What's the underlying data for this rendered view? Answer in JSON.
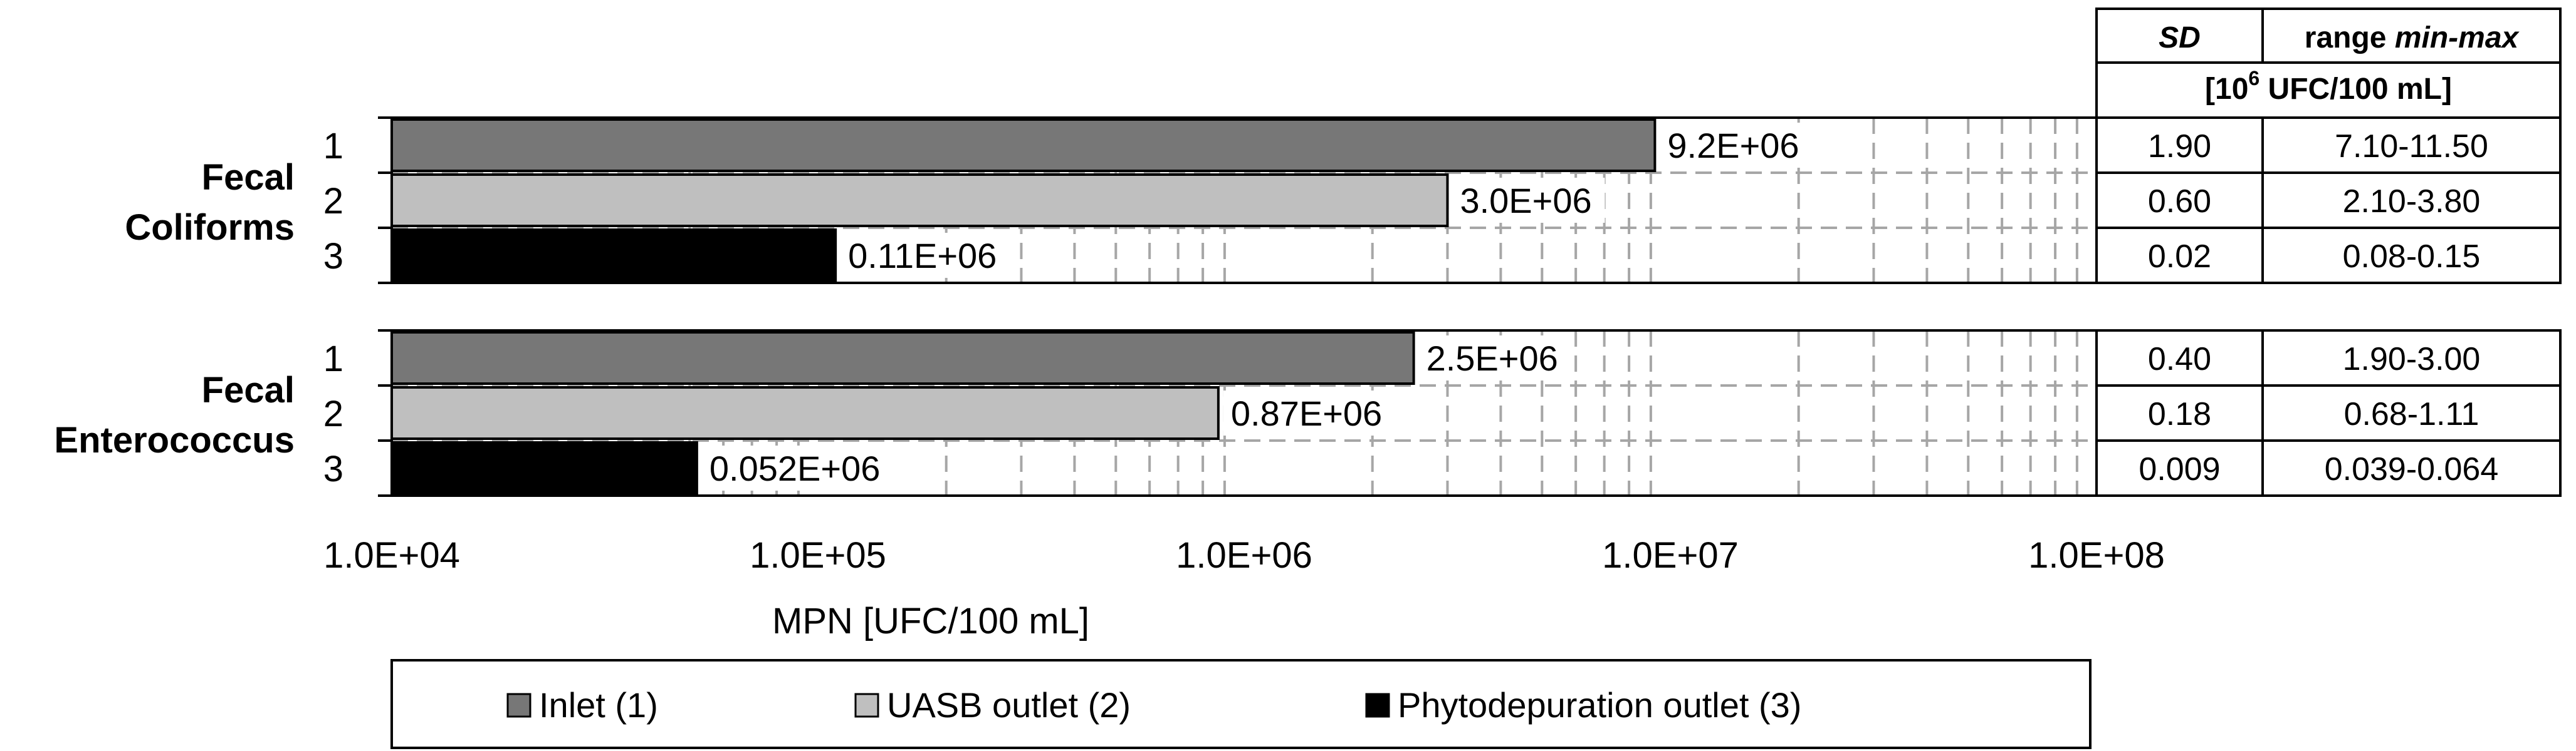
{
  "chart_data": {
    "type": "bar",
    "orientation": "horizontal",
    "x_scale": "log",
    "xlim": [
      10000,
      100000000
    ],
    "xlabel": "MPN [UFC/100 mL]",
    "x_ticks": [
      "1.0E+04",
      "1.0E+05",
      "1.0E+06",
      "1.0E+07",
      "1.0E+08"
    ],
    "grid": "dashed vertical log gridlines",
    "legend_position": "bottom",
    "series": [
      {
        "name": "Inlet (1)",
        "color": "#777777",
        "row_label": "1"
      },
      {
        "name": "UASB outlet (2)",
        "color": "#bfbfbf",
        "row_label": "2"
      },
      {
        "name": "Phytodepuration outlet (3)",
        "color": "#000000",
        "row_label": "3"
      }
    ],
    "groups": [
      {
        "name_line1": "Fecal",
        "name_line2": "Coliforms",
        "values": [
          9200000,
          3000000,
          110000
        ],
        "value_labels": [
          "9.2E+06",
          "3.0E+06",
          "0.11E+06"
        ],
        "sd": [
          "1.90",
          "0.60",
          "0.02"
        ],
        "range": [
          "7.10-11.50",
          "2.10-3.80",
          "0.08-0.15"
        ]
      },
      {
        "name_line1": "Fecal",
        "name_line2": "Enterococcus",
        "values": [
          2500000,
          870000,
          52000
        ],
        "value_labels": [
          "2.5E+06",
          "0.87E+06",
          "0.052E+06"
        ],
        "sd": [
          "0.40",
          "0.18",
          "0.009"
        ],
        "range": [
          "1.90-3.00",
          "0.68-1.11",
          "0.039-0.064"
        ]
      }
    ],
    "table": {
      "sd_header": "SD",
      "range_header_prefix": "range ",
      "range_header_italic": "min-max",
      "unit_prefix": "[10",
      "unit_exponent": "6",
      "unit_suffix": " UFC/100 mL]"
    }
  }
}
